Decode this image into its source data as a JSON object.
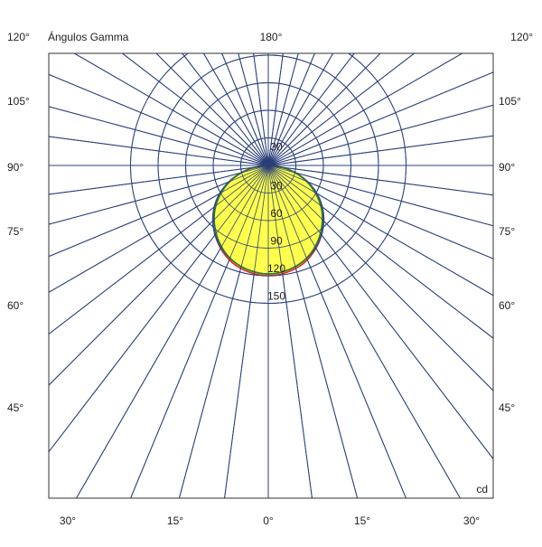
{
  "chart_data": {
    "type": "polar-photometric",
    "title": "Ángulos Gamma",
    "unit": "cd",
    "radial_ticks": [
      30,
      60,
      90,
      120,
      150
    ],
    "upper_radial_ticks": [
      30
    ],
    "gamma_angle_step_deg": 7.5,
    "gamma_angle_labels": {
      "top_center": "180°",
      "top_left_corner": "120°",
      "top_right_corner": "120°",
      "left": [
        "105°",
        "90°",
        "75°",
        "60°",
        "45°"
      ],
      "right": [
        "105°",
        "90°",
        "75°",
        "60°",
        "45°"
      ],
      "bottom": [
        "30°",
        "15°",
        "0°",
        "15°",
        "30°"
      ]
    },
    "series": [
      {
        "color": "#e4262a",
        "fill": "#ffff44",
        "points": [
          [
            0,
            120
          ],
          [
            10,
            118
          ],
          [
            20,
            113
          ],
          [
            30,
            104
          ],
          [
            40,
            92
          ],
          [
            50,
            78
          ],
          [
            60,
            61
          ],
          [
            70,
            41
          ],
          [
            80,
            20
          ],
          [
            90,
            0
          ]
        ]
      },
      {
        "color": "#2a4a9a",
        "points": [
          [
            0,
            118
          ],
          [
            10,
            116
          ],
          [
            20,
            111
          ],
          [
            30,
            103
          ],
          [
            40,
            92
          ],
          [
            50,
            78
          ],
          [
            60,
            61
          ],
          [
            70,
            41
          ],
          [
            80,
            20
          ],
          [
            90,
            0
          ]
        ]
      },
      {
        "color": "#2f7a2f",
        "points": [
          [
            0,
            118
          ],
          [
            10,
            116
          ],
          [
            20,
            111
          ],
          [
            30,
            102
          ],
          [
            40,
            90
          ],
          [
            50,
            76
          ],
          [
            60,
            59
          ],
          [
            70,
            40
          ],
          [
            80,
            20
          ],
          [
            90,
            0
          ]
        ]
      }
    ],
    "grid_color": "#2a3f7a"
  }
}
